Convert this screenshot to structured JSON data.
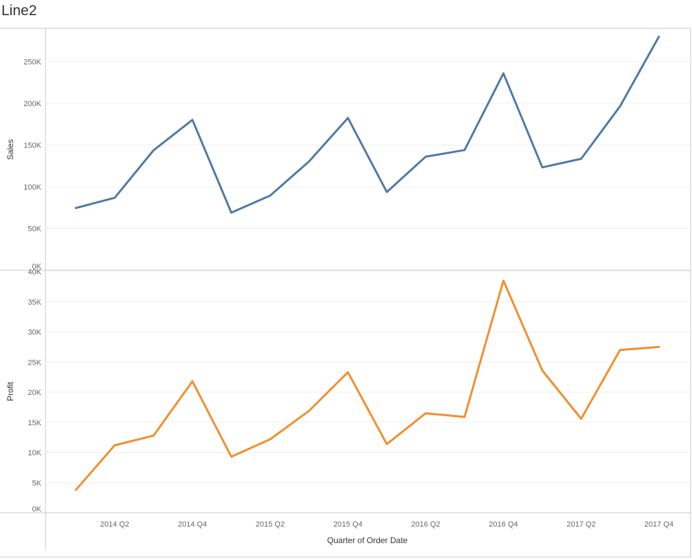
{
  "sheet_title": "Line2",
  "chart_data": {
    "type": "line",
    "x": [
      "2014 Q1",
      "2014 Q2",
      "2014 Q3",
      "2014 Q4",
      "2015 Q1",
      "2015 Q2",
      "2015 Q3",
      "2015 Q4",
      "2016 Q1",
      "2016 Q2",
      "2016 Q3",
      "2016 Q4",
      "2017 Q1",
      "2017 Q2",
      "2017 Q3",
      "2017 Q4"
    ],
    "xticks": [
      "2014 Q2",
      "2014 Q4",
      "2015 Q2",
      "2015 Q4",
      "2016 Q2",
      "2016 Q4",
      "2017 Q2",
      "2017 Q4"
    ],
    "xlabel": "Quarter of Order Date",
    "grid": true,
    "panels": [
      {
        "ylabel": "Sales",
        "color": "#4e79a7",
        "ylim": [
          0,
          290000
        ],
        "yticks": [
          0,
          50000,
          100000,
          150000,
          200000,
          250000
        ],
        "ytick_labels": [
          "0K",
          "50K",
          "100K",
          "150K",
          "200K",
          "250K"
        ],
        "values": [
          74500,
          86800,
          143800,
          180200,
          69000,
          89500,
          130400,
          182500,
          93700,
          136100,
          144000,
          236000,
          123300,
          133500,
          196500,
          280000
        ]
      },
      {
        "ylabel": "Profit",
        "color": "#f28e2b",
        "ylim": [
          0,
          40000
        ],
        "yticks": [
          0,
          5000,
          10000,
          15000,
          20000,
          25000,
          30000,
          35000,
          40000
        ],
        "ytick_labels": [
          "0K",
          "5K",
          "10K",
          "15K",
          "20K",
          "25K",
          "30K",
          "35K",
          "40K"
        ],
        "values": [
          3800,
          11200,
          12800,
          21800,
          9300,
          12200,
          16900,
          23300,
          11400,
          16500,
          15900,
          38500,
          23600,
          15600,
          27000,
          27500
        ]
      }
    ]
  }
}
